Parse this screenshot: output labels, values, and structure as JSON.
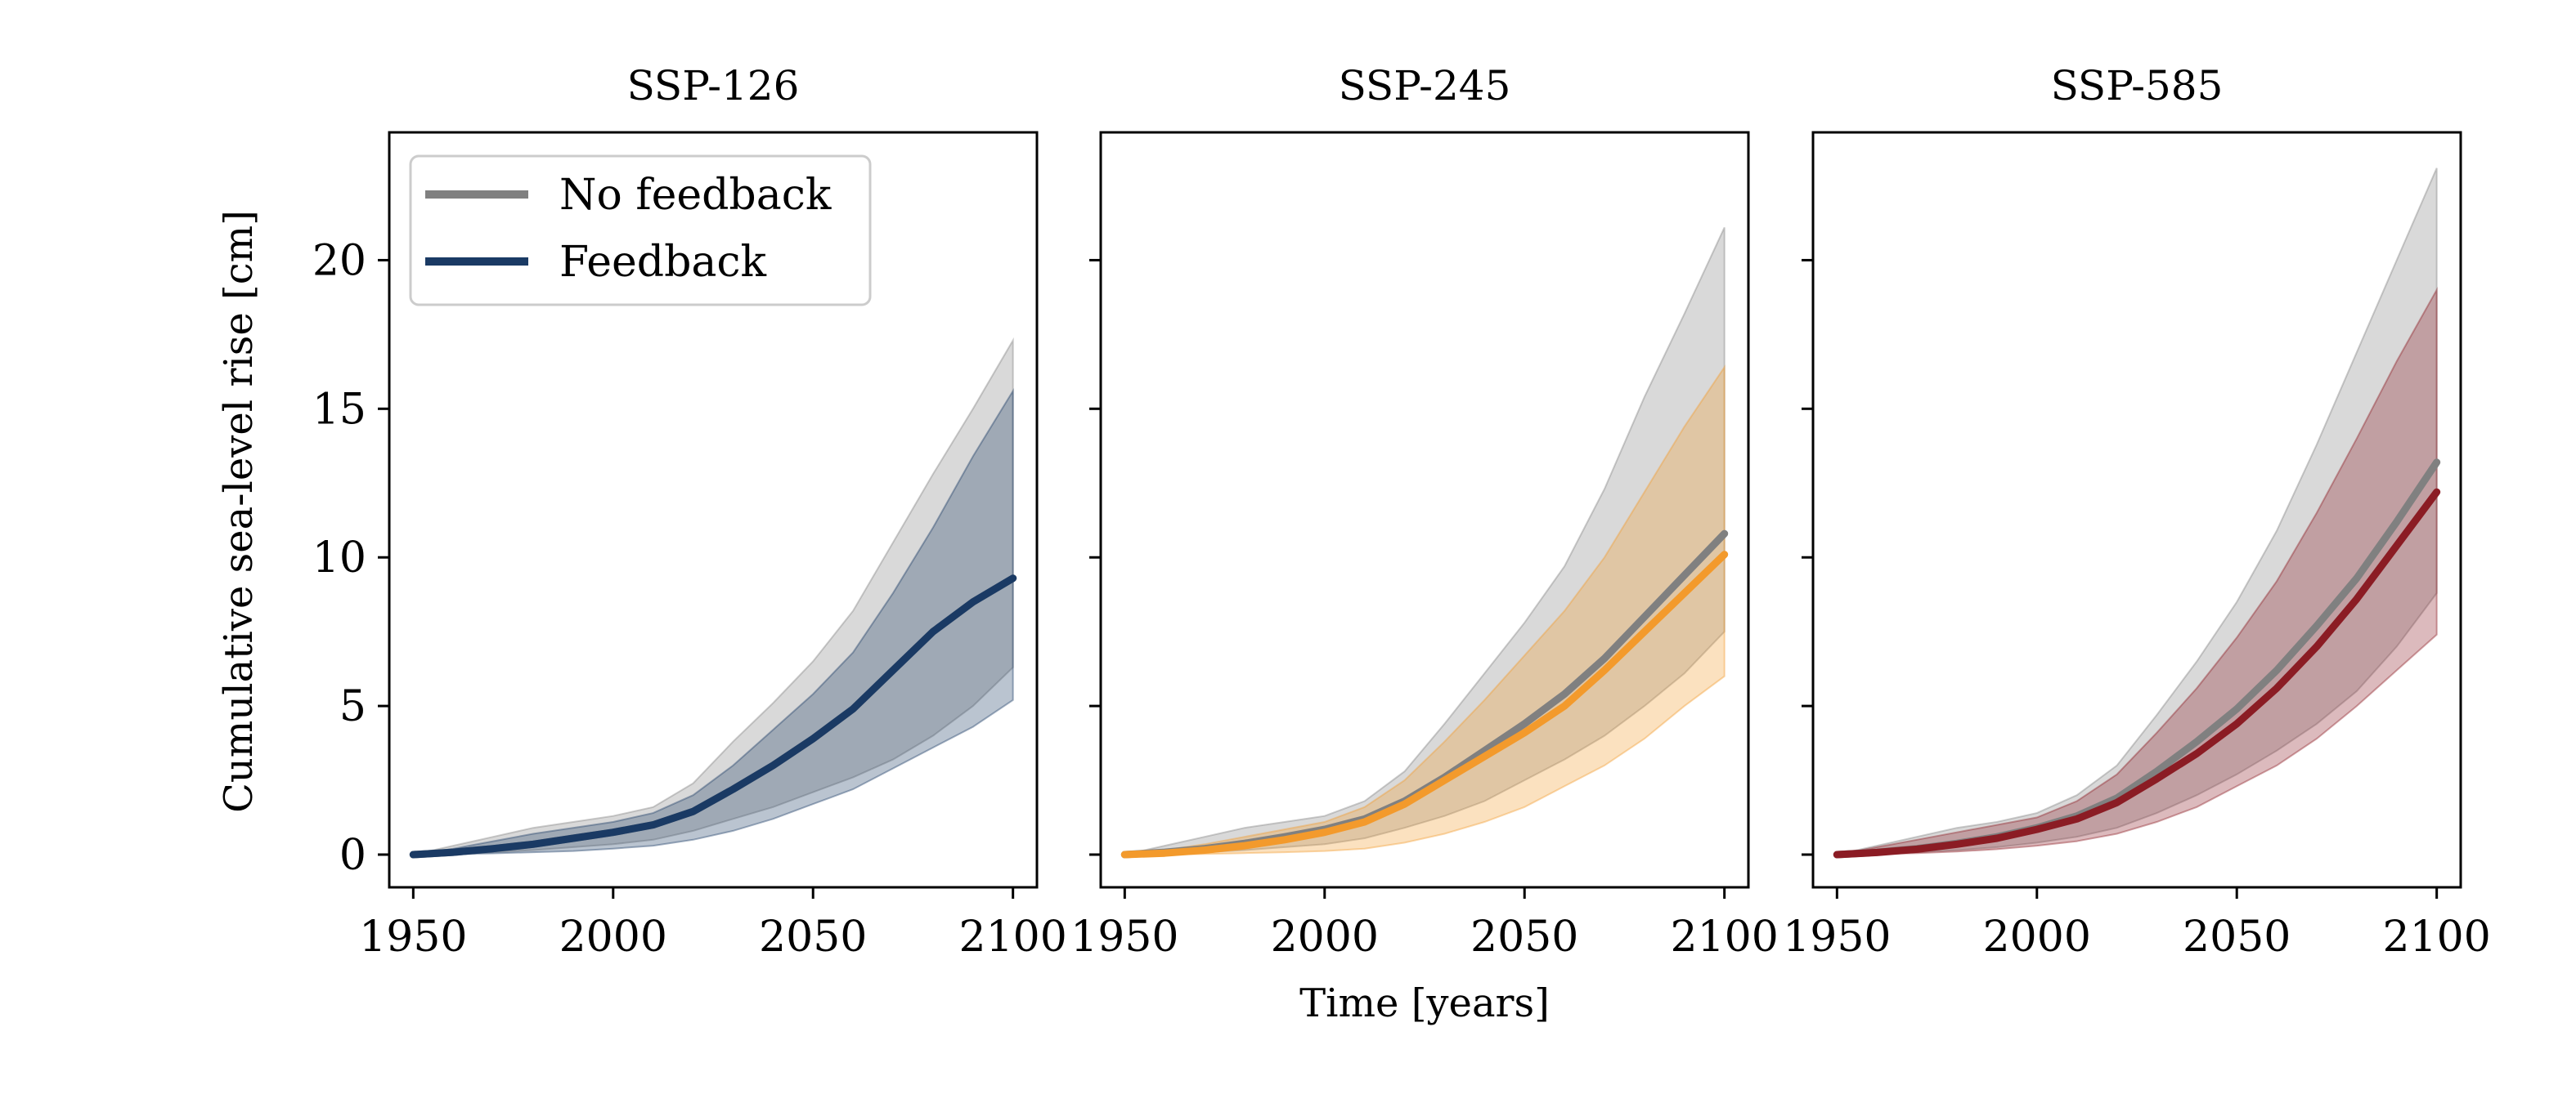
{
  "chart_data": {
    "type": "area",
    "xlabel": "Time [years]",
    "ylabel": "Cumulative sea-level rise [cm]",
    "xlim": [
      1944,
      2106
    ],
    "ylim": [
      -1.1,
      24.3
    ],
    "xticks": [
      1950,
      2000,
      2050,
      2100
    ],
    "yticks": [
      0,
      5,
      10,
      15,
      20
    ],
    "legend": {
      "placement": "top-left of first panel",
      "entries": [
        {
          "label": "No feedback",
          "color": "#808080"
        },
        {
          "label": "Feedback",
          "color": "#1a3a64"
        }
      ]
    },
    "x": [
      1950,
      1960,
      1970,
      1980,
      1990,
      2000,
      2010,
      2020,
      2030,
      2040,
      2050,
      2060,
      2070,
      2080,
      2090,
      2100
    ],
    "panels": [
      {
        "title": "SSP-126",
        "feedback_color": "#1a3a64",
        "no_feedback": {
          "median": [
            0,
            0.08,
            0.2,
            0.35,
            0.55,
            0.75,
            1.0,
            1.45,
            2.2,
            3.0,
            3.9,
            4.9,
            6.2,
            7.5,
            8.5,
            9.3
          ],
          "lower": [
            0,
            0.02,
            0.08,
            0.15,
            0.25,
            0.35,
            0.5,
            0.8,
            1.2,
            1.6,
            2.1,
            2.6,
            3.2,
            4.0,
            5.0,
            6.3
          ],
          "upper": [
            0,
            0.3,
            0.6,
            0.9,
            1.1,
            1.3,
            1.6,
            2.4,
            3.8,
            5.1,
            6.5,
            8.2,
            10.5,
            12.8,
            15.0,
            17.3
          ]
        },
        "feedback": {
          "median": [
            0,
            0.08,
            0.2,
            0.35,
            0.55,
            0.75,
            1.0,
            1.45,
            2.2,
            3.0,
            3.9,
            4.9,
            6.2,
            7.5,
            8.5,
            9.3
          ],
          "lower": [
            0,
            0.01,
            0.04,
            0.08,
            0.12,
            0.2,
            0.3,
            0.5,
            0.8,
            1.2,
            1.7,
            2.2,
            2.9,
            3.6,
            4.3,
            5.2
          ],
          "upper": [
            0,
            0.2,
            0.45,
            0.7,
            0.9,
            1.1,
            1.4,
            2.0,
            3.0,
            4.2,
            5.4,
            6.8,
            8.8,
            11.0,
            13.4,
            15.6
          ]
        }
      },
      {
        "title": "SSP-245",
        "feedback_color": "#f39a2c",
        "no_feedback": {
          "median": [
            0,
            0.08,
            0.2,
            0.38,
            0.6,
            0.85,
            1.2,
            1.8,
            2.6,
            3.5,
            4.4,
            5.4,
            6.6,
            8.0,
            9.4,
            10.8
          ],
          "lower": [
            0,
            0.02,
            0.08,
            0.15,
            0.25,
            0.35,
            0.55,
            0.9,
            1.3,
            1.8,
            2.5,
            3.2,
            4.0,
            5.0,
            6.1,
            7.5
          ],
          "upper": [
            0,
            0.3,
            0.6,
            0.9,
            1.1,
            1.3,
            1.8,
            2.8,
            4.4,
            6.1,
            7.8,
            9.7,
            12.3,
            15.4,
            18.2,
            21.1
          ]
        },
        "feedback": {
          "median": [
            0,
            0.05,
            0.15,
            0.3,
            0.5,
            0.75,
            1.1,
            1.7,
            2.5,
            3.3,
            4.1,
            5.0,
            6.2,
            7.5,
            8.8,
            10.1
          ],
          "lower": [
            0,
            0.0,
            0.02,
            0.05,
            0.08,
            0.12,
            0.2,
            0.4,
            0.7,
            1.1,
            1.6,
            2.3,
            3.0,
            3.9,
            5.0,
            6.0
          ],
          "upper": [
            0,
            0.15,
            0.35,
            0.6,
            0.85,
            1.1,
            1.6,
            2.5,
            3.8,
            5.2,
            6.7,
            8.2,
            10.0,
            12.2,
            14.4,
            16.4
          ]
        }
      },
      {
        "title": "SSP-585",
        "feedback_color": "#8b1c24",
        "no_feedback": {
          "median": [
            0,
            0.08,
            0.2,
            0.38,
            0.6,
            0.9,
            1.3,
            1.9,
            2.8,
            3.8,
            4.9,
            6.2,
            7.7,
            9.3,
            11.2,
            13.2
          ],
          "lower": [
            0,
            0.02,
            0.08,
            0.15,
            0.25,
            0.4,
            0.6,
            0.9,
            1.4,
            2.0,
            2.7,
            3.5,
            4.4,
            5.5,
            7.0,
            8.8
          ],
          "upper": [
            0,
            0.3,
            0.6,
            0.9,
            1.1,
            1.4,
            2.0,
            3.0,
            4.7,
            6.5,
            8.5,
            10.9,
            13.8,
            16.9,
            20.0,
            23.1
          ]
        },
        "feedback": {
          "median": [
            0,
            0.07,
            0.18,
            0.35,
            0.55,
            0.85,
            1.2,
            1.75,
            2.55,
            3.4,
            4.4,
            5.6,
            7.0,
            8.6,
            10.4,
            12.2
          ],
          "lower": [
            0,
            0.02,
            0.05,
            0.1,
            0.18,
            0.3,
            0.45,
            0.7,
            1.1,
            1.6,
            2.3,
            3.0,
            3.9,
            5.0,
            6.2,
            7.4
          ],
          "upper": [
            0,
            0.25,
            0.5,
            0.75,
            1.0,
            1.25,
            1.8,
            2.7,
            4.1,
            5.6,
            7.3,
            9.2,
            11.5,
            14.0,
            16.6,
            19.0
          ]
        }
      }
    ]
  }
}
